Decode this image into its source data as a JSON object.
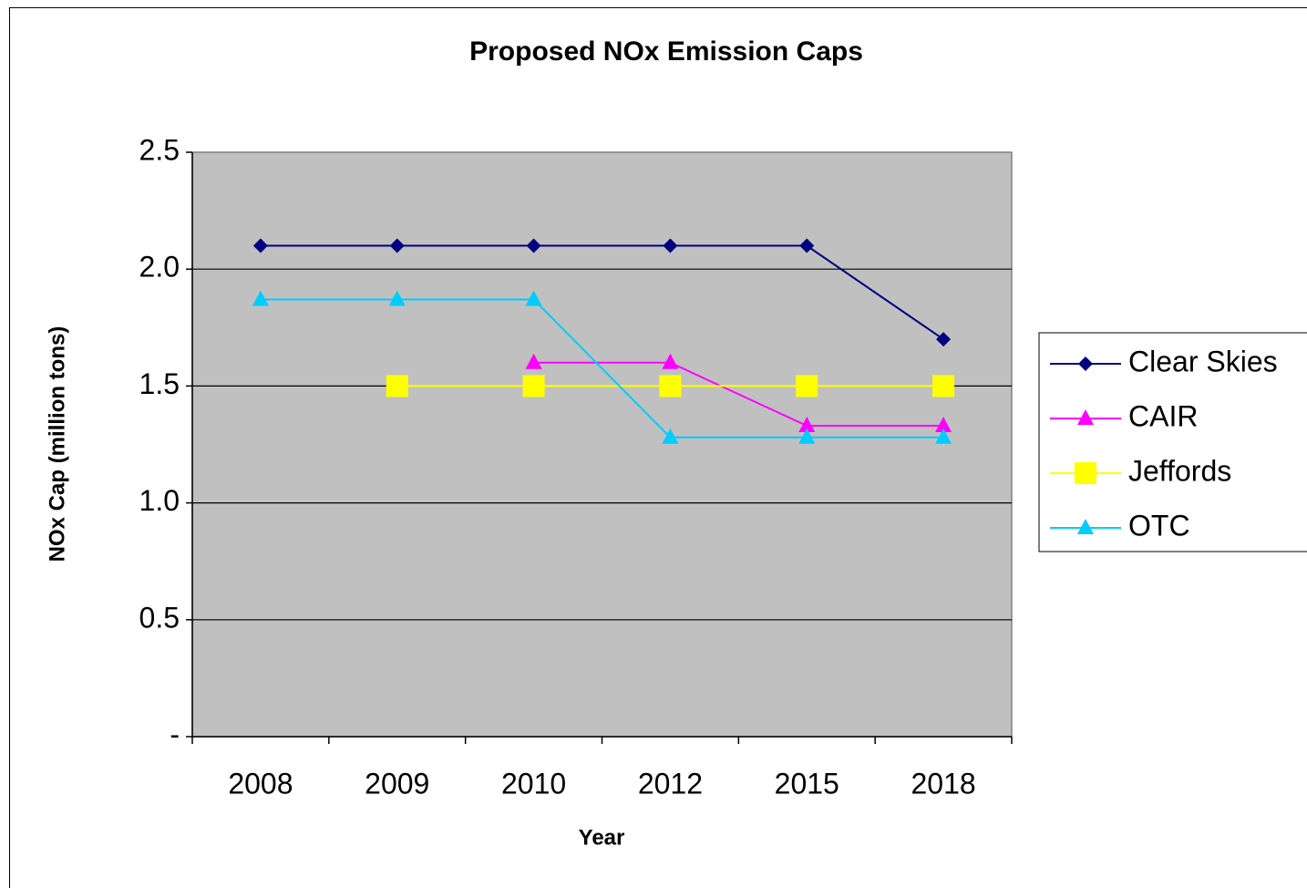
{
  "chart_data": {
    "type": "line",
    "title": "Proposed NOx Emission Caps",
    "x_label": "Year",
    "y_label": "NOx Cap (million tons)",
    "categories": [
      "2008",
      "2009",
      "2010",
      "2012",
      "2015",
      "2018"
    ],
    "series": [
      {
        "name": "Clear Skies",
        "color": "#000080",
        "marker": "diamond",
        "values": [
          2.1,
          2.1,
          2.1,
          2.1,
          2.1,
          1.7
        ]
      },
      {
        "name": "CAIR",
        "color": "#ff00ff",
        "marker": "triangle",
        "values": [
          null,
          null,
          1.6,
          1.6,
          1.33,
          1.33
        ]
      },
      {
        "name": "Jeffords",
        "color": "#ffff00",
        "marker": "square",
        "values": [
          null,
          1.5,
          1.5,
          1.5,
          1.5,
          1.5
        ]
      },
      {
        "name": "OTC",
        "color": "#00ccff",
        "marker": "triangle",
        "values": [
          1.87,
          1.87,
          1.87,
          1.28,
          1.28,
          1.28
        ]
      }
    ],
    "ylim": [
      0,
      2.5
    ],
    "yticks": [
      {
        "value": 0,
        "label": "-"
      },
      0.5,
      {
        "value": 1,
        "label": "1.0"
      },
      1.5,
      {
        "value": 2,
        "label": "2.0"
      },
      2.5
    ],
    "grid": true,
    "legend": "right",
    "plot_background": "#c0c0c0"
  }
}
